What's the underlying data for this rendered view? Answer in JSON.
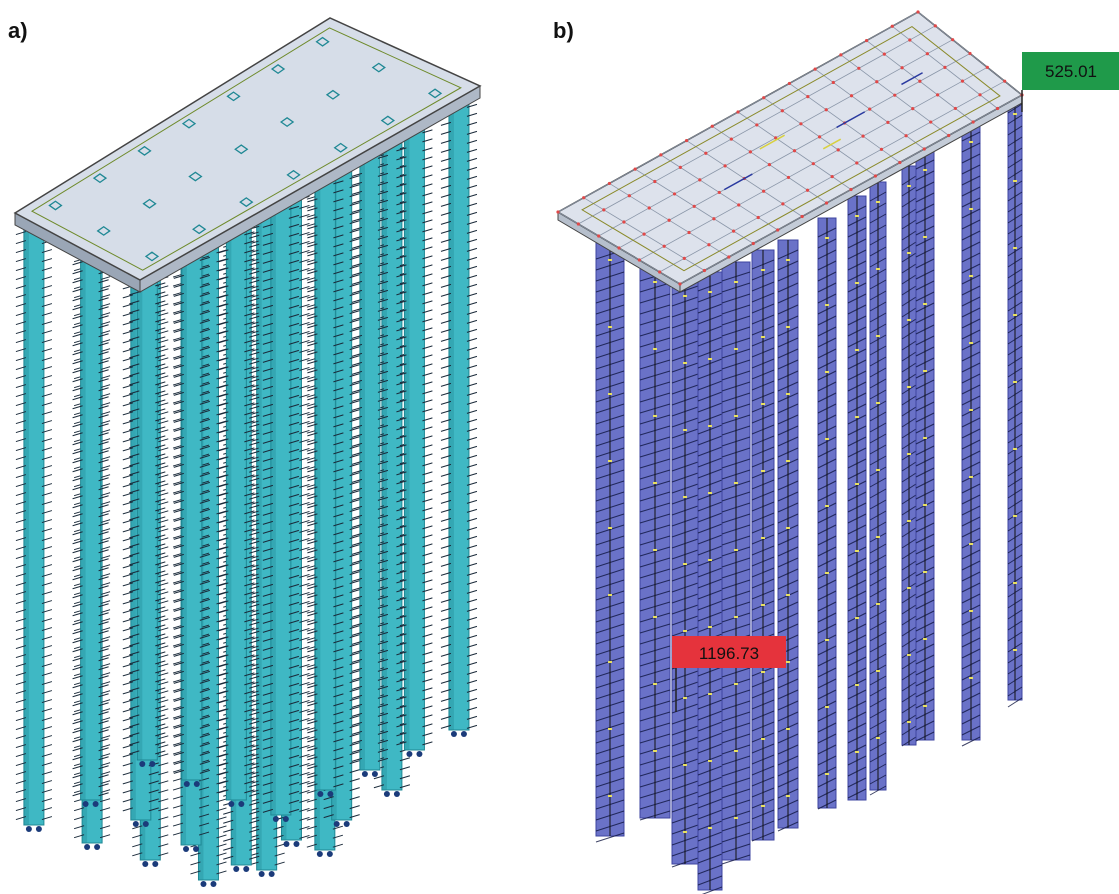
{
  "panels": [
    {
      "label": "a)",
      "colors": {
        "pile": "#3fb8c4",
        "pile_dark": "#1f8894",
        "cap": "#d6dde8",
        "cap_edge": "#444444",
        "hatch": "#1a2a3a"
      }
    },
    {
      "label": "b)",
      "colors": {
        "pile": "#6a72c8",
        "pile_dark": "#3e44a0",
        "cap": "#dde2ec",
        "cap_edge": "#444444",
        "mesh": "#e04848",
        "hatch": "#0f1540"
      }
    }
  ],
  "annotations": {
    "max_value": {
      "text": "1196.73",
      "color": "#e5333c"
    },
    "min_value": {
      "text": "525.01",
      "color": "#1f9a4a"
    }
  }
}
